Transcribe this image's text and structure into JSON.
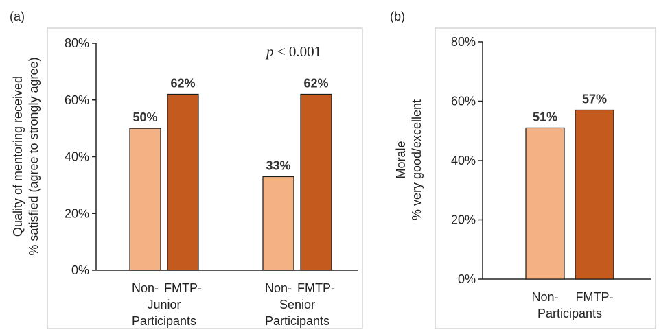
{
  "panels": [
    {
      "label": "(a)"
    },
    {
      "label": "(b)"
    }
  ],
  "colors": {
    "non_participants": "#F4B183",
    "fmtp_participants": "#C55A1E",
    "bar_outline": "#1a1a1a",
    "frame": "#bfbfbf"
  },
  "chart_data": [
    {
      "type": "bar",
      "ylabel_line1": "Quality of mentoring received",
      "ylabel_line2": "% satisfied (agree to strongly agree)",
      "ylim": [
        0,
        80
      ],
      "yticks": [
        "0%",
        "20%",
        "40%",
        "60%",
        "80%"
      ],
      "annotation": {
        "italic": "p",
        "text": " < 0.001"
      },
      "groups": [
        {
          "top_labels": [
            "Non-",
            "FMTP-"
          ],
          "group_label": "Junior",
          "group_label2": "Participants",
          "values": [
            50,
            62
          ],
          "value_labels": [
            "50%",
            "62%"
          ]
        },
        {
          "top_labels": [
            "Non-",
            "FMTP-"
          ],
          "group_label": "Senior",
          "group_label2": "Participants",
          "values": [
            33,
            62
          ],
          "value_labels": [
            "33%",
            "62%"
          ]
        }
      ]
    },
    {
      "type": "bar",
      "ylabel_line1": "Morale",
      "ylabel_line2": "% very good/excellent",
      "ylim": [
        0,
        80
      ],
      "yticks": [
        "0%",
        "20%",
        "40%",
        "60%",
        "80%"
      ],
      "groups": [
        {
          "top_labels": [
            "Non-",
            "FMTP-"
          ],
          "group_label": "Participants",
          "group_label2": "",
          "values": [
            51,
            57
          ],
          "value_labels": [
            "51%",
            "57%"
          ]
        }
      ]
    }
  ]
}
